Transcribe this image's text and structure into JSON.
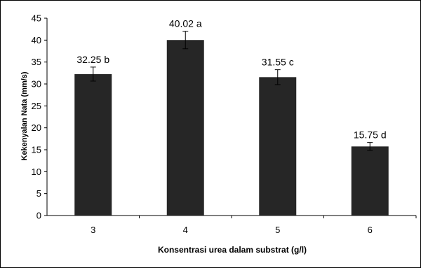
{
  "chart_data": {
    "type": "bar",
    "categories": [
      "3",
      "4",
      "5",
      "6"
    ],
    "values": [
      32.25,
      40.02,
      31.55,
      15.75
    ],
    "errors": [
      1.6,
      2.0,
      1.7,
      0.9
    ],
    "bar_labels": [
      "32.25 b",
      "40.02 a",
      "31.55 c",
      "15.75 d"
    ],
    "title": "",
    "xlabel": "Konsentrasi urea dalam substrat (g/l)",
    "ylabel": "Kekenyalan Nata (mm/s)",
    "ylim": [
      0,
      45
    ],
    "yticks": [
      0,
      5,
      10,
      15,
      20,
      25,
      30,
      35,
      40,
      45
    ],
    "bar_color": "#262626",
    "grid": false,
    "legend": "none"
  }
}
